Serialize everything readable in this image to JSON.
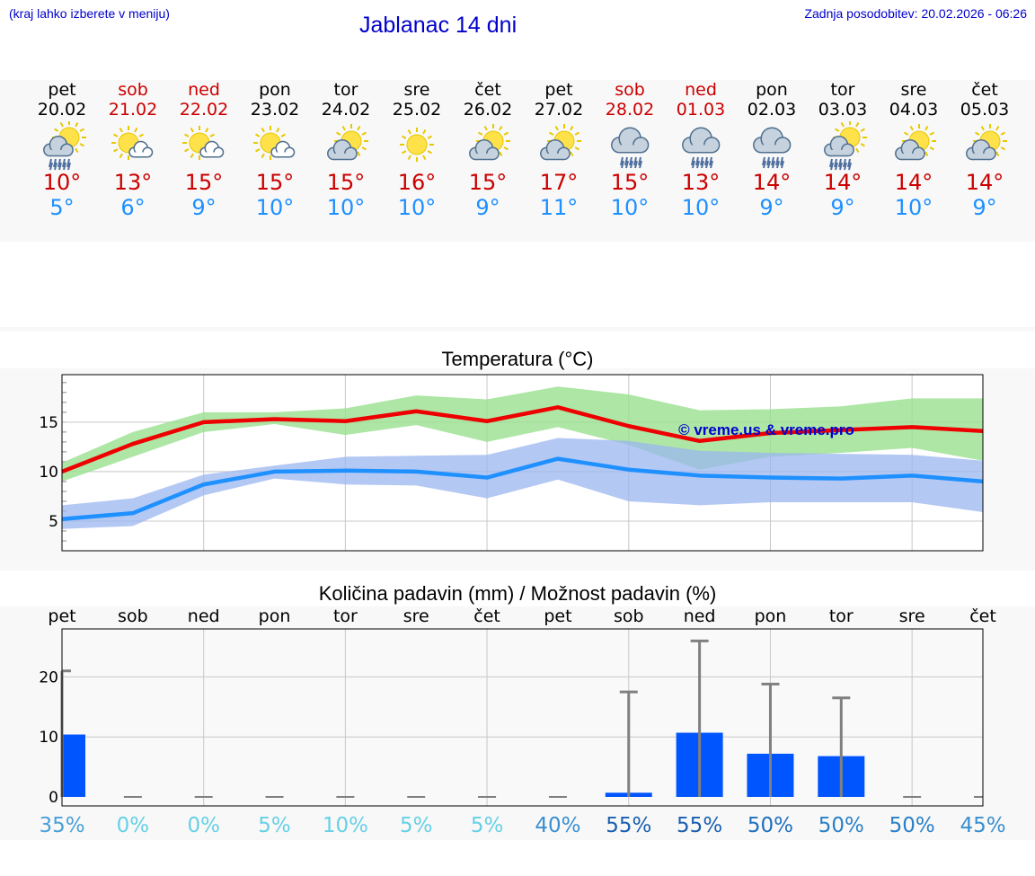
{
  "header": {
    "location_hint": "(kraj lahko izberete v meniju)",
    "title": "Jablanac 14 dni",
    "updated": "Zadnja posodobitev: 20.02.2026 - 06:26"
  },
  "colors": {
    "max_temp": "#cc0000",
    "min_temp": "#1e90ff",
    "max_line": "#ee0000",
    "min_line": "#1e90ff",
    "max_band": "#99e08f",
    "min_band": "#9bb5f0",
    "precip_bar": "#0055ff",
    "error_bar": "#808080",
    "watermark": "#0000cc"
  },
  "days": [
    {
      "name": "pet",
      "date": "20.02",
      "weekend": false,
      "icon": "sun-cloud-rain-icon",
      "max": "10°",
      "min": "5°"
    },
    {
      "name": "sob",
      "date": "21.02",
      "weekend": true,
      "icon": "sun-small-cloud-icon",
      "max": "13°",
      "min": "6°"
    },
    {
      "name": "ned",
      "date": "22.02",
      "weekend": true,
      "icon": "sun-small-cloud-icon",
      "max": "15°",
      "min": "9°"
    },
    {
      "name": "pon",
      "date": "23.02",
      "weekend": false,
      "icon": "sun-small-cloud-icon",
      "max": "15°",
      "min": "10°"
    },
    {
      "name": "tor",
      "date": "24.02",
      "weekend": false,
      "icon": "sun-cloud-icon",
      "max": "15°",
      "min": "10°"
    },
    {
      "name": "sre",
      "date": "25.02",
      "weekend": false,
      "icon": "sun-icon",
      "max": "16°",
      "min": "10°"
    },
    {
      "name": "čet",
      "date": "26.02",
      "weekend": false,
      "icon": "sun-cloud-icon",
      "max": "15°",
      "min": "9°"
    },
    {
      "name": "pet",
      "date": "27.02",
      "weekend": false,
      "icon": "sun-cloud-icon",
      "max": "17°",
      "min": "11°"
    },
    {
      "name": "sob",
      "date": "28.02",
      "weekend": true,
      "icon": "cloud-rain-icon",
      "max": "15°",
      "min": "10°"
    },
    {
      "name": "ned",
      "date": "01.03",
      "weekend": true,
      "icon": "cloud-rain-icon",
      "max": "13°",
      "min": "10°"
    },
    {
      "name": "pon",
      "date": "02.03",
      "weekend": false,
      "icon": "cloud-rain-icon",
      "max": "14°",
      "min": "9°"
    },
    {
      "name": "tor",
      "date": "03.03",
      "weekend": false,
      "icon": "sun-cloud-rain-icon",
      "max": "14°",
      "min": "9°"
    },
    {
      "name": "sre",
      "date": "04.03",
      "weekend": false,
      "icon": "sun-cloud-icon",
      "max": "14°",
      "min": "10°"
    },
    {
      "name": "čet",
      "date": "05.03",
      "weekend": false,
      "icon": "sun-cloud-icon",
      "max": "14°",
      "min": "9°"
    }
  ],
  "chart_data": [
    {
      "type": "line",
      "title": "Temperatura (°C)",
      "xlabel": "",
      "ylabel": "°C",
      "ylim": [
        2,
        19.8
      ],
      "yticks": [
        5,
        10,
        15
      ],
      "grid": true,
      "watermark": "© vreme.us & vreme.pro",
      "x": [
        0,
        1,
        2,
        3,
        4,
        5,
        6,
        7,
        8,
        9,
        10,
        11,
        12,
        13
      ],
      "series": [
        {
          "name": "max",
          "values": [
            10.0,
            12.8,
            15.0,
            15.3,
            15.1,
            16.1,
            15.1,
            16.5,
            14.6,
            13.1,
            13.9,
            14.2,
            14.5,
            14.1
          ],
          "band_low": [
            9.0,
            11.5,
            14.0,
            14.8,
            13.7,
            14.7,
            13.0,
            14.5,
            12.7,
            10.2,
            11.5,
            11.9,
            12.4,
            11.1
          ],
          "band_high": [
            10.9,
            14.0,
            16.0,
            16.0,
            16.4,
            17.7,
            17.3,
            18.6,
            17.8,
            16.2,
            16.3,
            16.6,
            17.4,
            17.4
          ]
        },
        {
          "name": "min",
          "values": [
            5.2,
            5.8,
            8.7,
            10.0,
            10.1,
            10.0,
            9.4,
            11.3,
            10.2,
            9.6,
            9.4,
            9.3,
            9.6,
            9.0
          ],
          "band_low": [
            4.2,
            4.5,
            7.6,
            9.3,
            8.7,
            8.6,
            7.3,
            9.2,
            7.0,
            6.6,
            6.9,
            6.9,
            6.9,
            5.9
          ],
          "band_high": [
            6.6,
            7.3,
            9.7,
            10.6,
            11.5,
            11.6,
            11.7,
            13.4,
            13.1,
            12.1,
            11.9,
            11.8,
            11.7,
            11.1
          ]
        }
      ]
    },
    {
      "type": "bar",
      "title": "Količina padavin (mm) / Možnost padavin (%)",
      "xlabel": "",
      "ylabel": "mm",
      "ylim": [
        -1.5,
        28
      ],
      "yticks": [
        0,
        10,
        20
      ],
      "grid": true,
      "categories": [
        "pet",
        "sob",
        "ned",
        "pon",
        "tor",
        "sre",
        "čet",
        "pet",
        "sob",
        "ned",
        "pon",
        "tor",
        "sre",
        "čet"
      ],
      "values": [
        10.4,
        0,
        0,
        0,
        0,
        0,
        0,
        0,
        0.7,
        10.7,
        7.2,
        6.8,
        0,
        0
      ],
      "error_high": [
        21,
        0,
        0,
        0,
        0,
        0,
        0,
        0,
        17.5,
        26,
        18.8,
        16.5,
        0,
        0
      ],
      "probability": [
        {
          "label": "35%",
          "color": "#4aa0d8"
        },
        {
          "label": "0%",
          "color": "#66d0e6"
        },
        {
          "label": "0%",
          "color": "#66d0e6"
        },
        {
          "label": "5%",
          "color": "#66d0e6"
        },
        {
          "label": "10%",
          "color": "#66d0e6"
        },
        {
          "label": "5%",
          "color": "#66d0e6"
        },
        {
          "label": "5%",
          "color": "#66d0e6"
        },
        {
          "label": "40%",
          "color": "#3a8fd0"
        },
        {
          "label": "55%",
          "color": "#1a5fb0"
        },
        {
          "label": "55%",
          "color": "#1a5fb0"
        },
        {
          "label": "50%",
          "color": "#1f6fbe"
        },
        {
          "label": "50%",
          "color": "#2a80c8"
        },
        {
          "label": "50%",
          "color": "#2a80c8"
        },
        {
          "label": "45%",
          "color": "#3a8fd0"
        }
      ]
    }
  ]
}
